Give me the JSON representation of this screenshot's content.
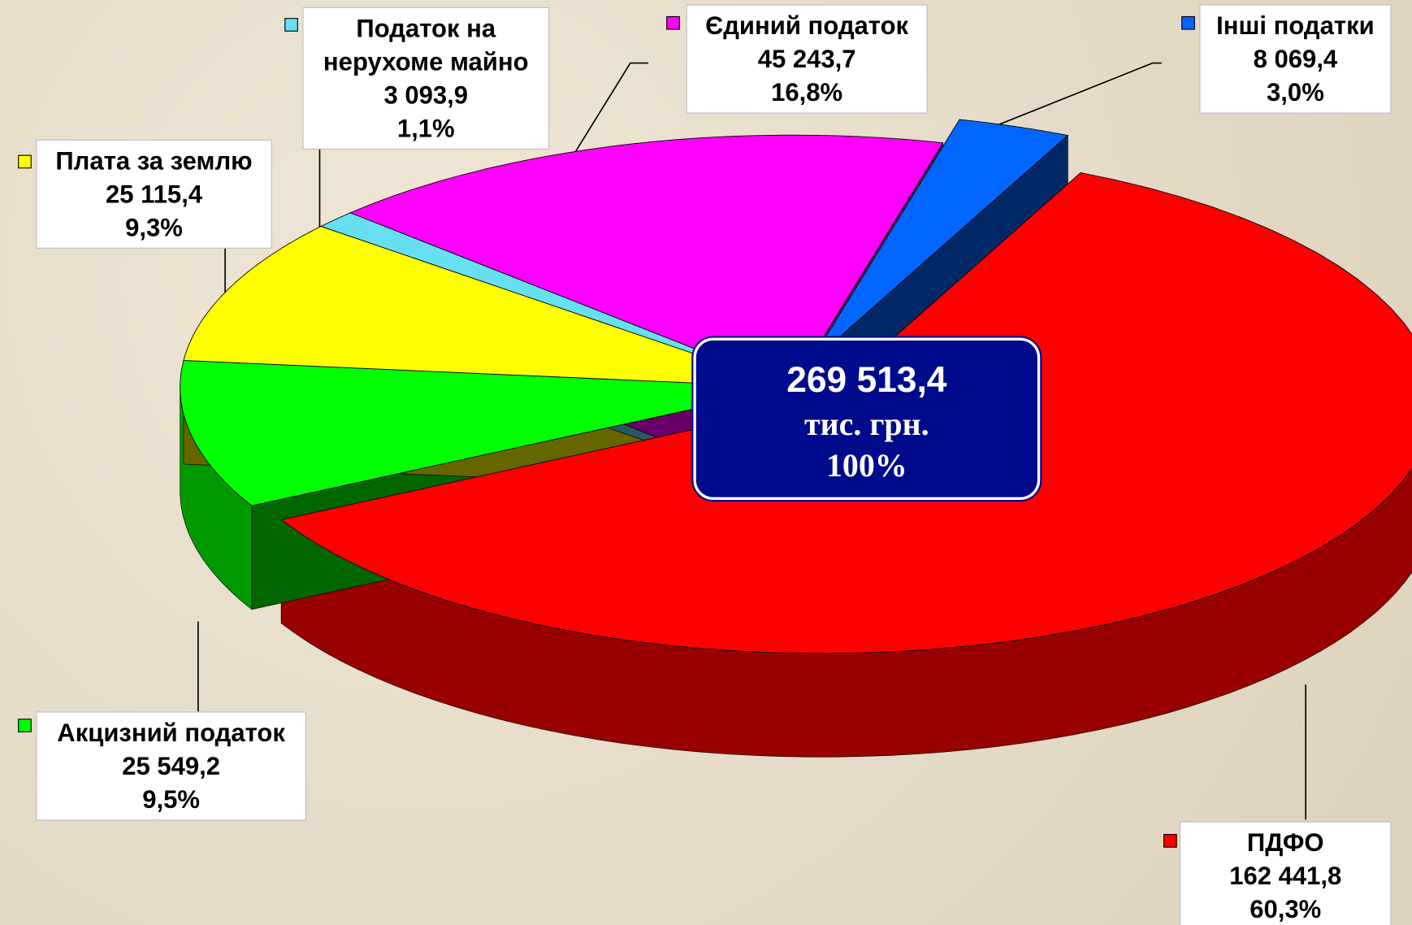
{
  "chart_data": {
    "type": "pie",
    "categories": [
      "ПДФО",
      "Акцизний податок",
      "Плата за землю",
      "Податок на нерухоме майно",
      "Єдиний податок",
      "Інші податки"
    ],
    "values": [
      162441.8,
      25549.2,
      25115.4,
      3093.9,
      45243.7,
      8069.4
    ],
    "value_labels": [
      "162 441,8",
      "25 549,2",
      "25 115,4",
      "3 093,9",
      "45 243,7",
      "8 069,4"
    ],
    "percents": [
      60.3,
      9.5,
      9.3,
      1.1,
      16.8,
      3.0
    ],
    "percent_labels": [
      "60,3%",
      "9,5%",
      "9,3%",
      "1,1%",
      "16,8%",
      "3,0%"
    ],
    "colors": [
      "#ff0000",
      "#00ff00",
      "#ffff00",
      "#66e0f0",
      "#ff00ff",
      "#0066ff"
    ],
    "total": 269513.4,
    "total_label": "269 513,4",
    "unit": "тис. грн.",
    "total_percent": 100,
    "total_percent_label": "100%"
  }
}
